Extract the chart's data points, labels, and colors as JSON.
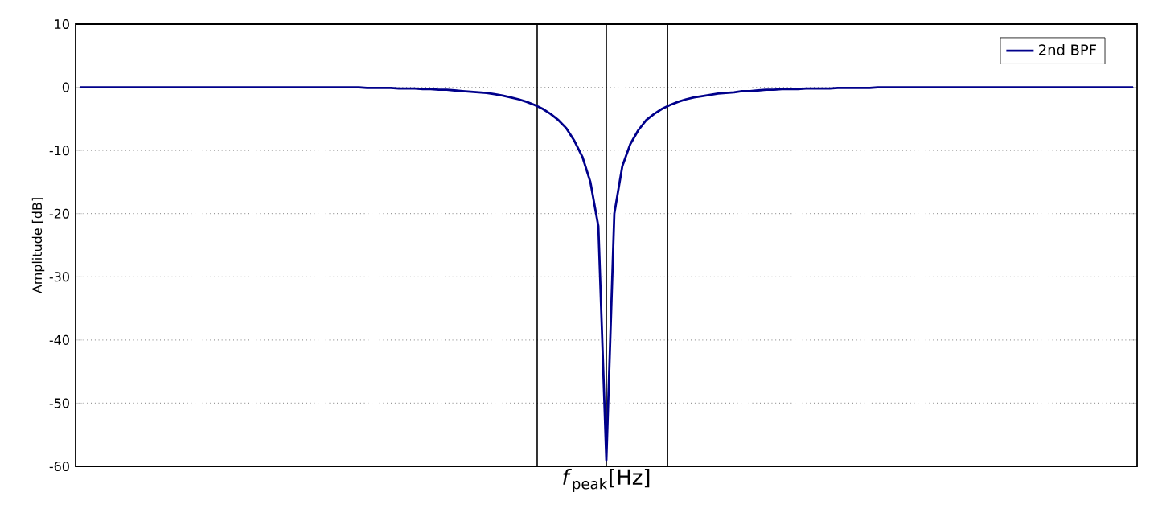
{
  "chart_data": {
    "type": "line",
    "xlabel": "*f*$_{peak}$[Hz]",
    "ylabel": "Amplitude [dB]",
    "categories": [
      null,
      null,
      null,
      null,
      null,
      null,
      null,
      null,
      null,
      null,
      null,
      null,
      null,
      null,
      null,
      null,
      null,
      null,
      null,
      null,
      null,
      null,
      null,
      null,
      null,
      null,
      null,
      null,
      null,
      null,
      null,
      null,
      null,
      null,
      null,
      null,
      null,
      null,
      null,
      null,
      null,
      null,
      null,
      null,
      null,
      null,
      null,
      null,
      null,
      null,
      null,
      null,
      null,
      null,
      null,
      null,
      null,
      null,
      null,
      null,
      null,
      null,
      null,
      null,
      null,
      null,
      null,
      null,
      null,
      null,
      null,
      null,
      null,
      null,
      null,
      null,
      null,
      null,
      null,
      null,
      null,
      null,
      null,
      null,
      null,
      null,
      null,
      null,
      null,
      null,
      null,
      null,
      null,
      null,
      null,
      null,
      null,
      null,
      null,
      null,
      null,
      null,
      null,
      null,
      null,
      null,
      null,
      null,
      null,
      null,
      null,
      null,
      null,
      null,
      null,
      null,
      null,
      null,
      null,
      null,
      null,
      null,
      null,
      null,
      null,
      null,
      null,
      null,
      null,
      null,
      null,
      null,
      null
    ],
    "series": [
      {
        "name": "2nd BPF",
        "color": "#00008b",
        "values": [
          0,
          0,
          0,
          0,
          0,
          0,
          0,
          0,
          0,
          0,
          0,
          0,
          0,
          0,
          0,
          0,
          0,
          0,
          0,
          0,
          0,
          0,
          0,
          0,
          0,
          0,
          0,
          0,
          0,
          0,
          0,
          0,
          0,
          0,
          0,
          0,
          -0.1,
          -0.1,
          -0.1,
          -0.1,
          -0.2,
          -0.2,
          -0.2,
          -0.3,
          -0.3,
          -0.4,
          -0.4,
          -0.5,
          -0.6,
          -0.7,
          -0.8,
          -0.9,
          -1.1,
          -1.3,
          -1.6,
          -1.9,
          -2.3,
          -2.8,
          -3.4,
          -4.2,
          -5.2,
          -6.5,
          -8.5,
          -11,
          -15,
          -22,
          -59,
          -20,
          -12.5,
          -9,
          -6.8,
          -5.2,
          -4.2,
          -3.4,
          -2.8,
          -2.3,
          -1.9,
          -1.6,
          -1.4,
          -1.2,
          -1.0,
          -0.9,
          -0.8,
          -0.6,
          -0.6,
          -0.5,
          -0.4,
          -0.4,
          -0.3,
          -0.3,
          -0.3,
          -0.2,
          -0.2,
          -0.2,
          -0.2,
          -0.1,
          -0.1,
          -0.1,
          -0.1,
          -0.1,
          0,
          0,
          0,
          0,
          0,
          0,
          0,
          0,
          0,
          0,
          0,
          0,
          0,
          0,
          0,
          0,
          0,
          0,
          0,
          0,
          0,
          0,
          0,
          0,
          0,
          0,
          0,
          0,
          0,
          0,
          0,
          0,
          0
        ]
      }
    ],
    "ylim": [
      -60,
      10
    ],
    "yticks": [
      -60,
      -50,
      -40,
      -30,
      -20,
      -10,
      0,
      10
    ],
    "grid": "y",
    "legend": "top right",
    "marker": "none",
    "line_style": "solid"
  }
}
